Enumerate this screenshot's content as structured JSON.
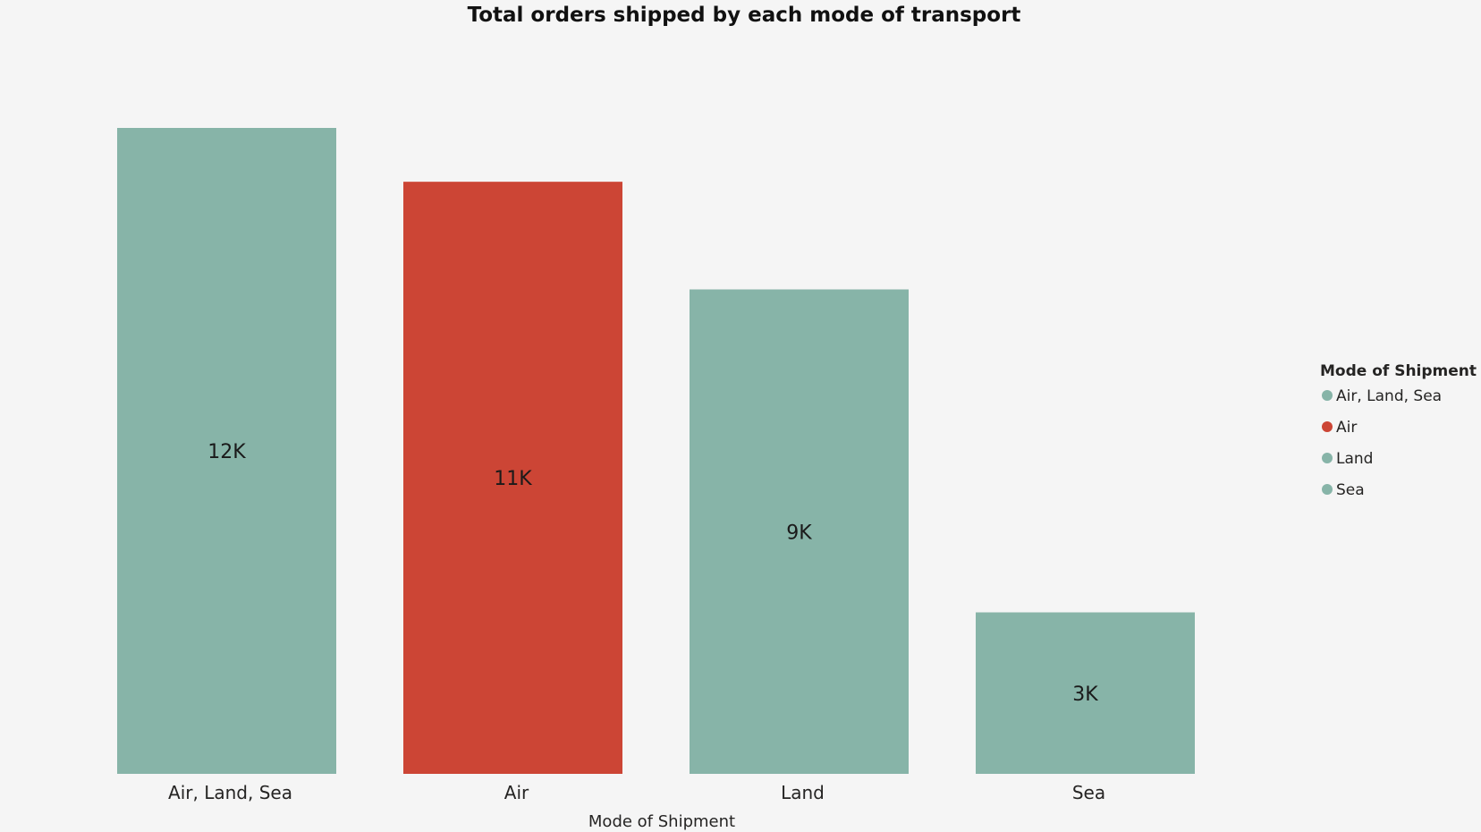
{
  "chart_data": {
    "type": "bar",
    "title": "Total orders shipped by each mode of transport",
    "xlabel": "Mode of Shipment",
    "ylabel": "",
    "categories": [
      "Air, Land, Sea",
      "Air",
      "Land",
      "Sea"
    ],
    "values": [
      12000,
      11000,
      9000,
      3000
    ],
    "value_labels": [
      "12K",
      "11K",
      "9K",
      "3K"
    ],
    "colors": [
      "#87b4a8",
      "#cc4535",
      "#87b4a8",
      "#87b4a8"
    ],
    "ylim": [
      0,
      12000
    ],
    "grid": false,
    "legend": {
      "title": "Mode of Shipment",
      "position": "right",
      "entries": [
        "Air, Land, Sea",
        "Air",
        "Land",
        "Sea"
      ],
      "colors": [
        "#87b4a8",
        "#cc4535",
        "#87b4a8",
        "#87b4a8"
      ]
    }
  }
}
